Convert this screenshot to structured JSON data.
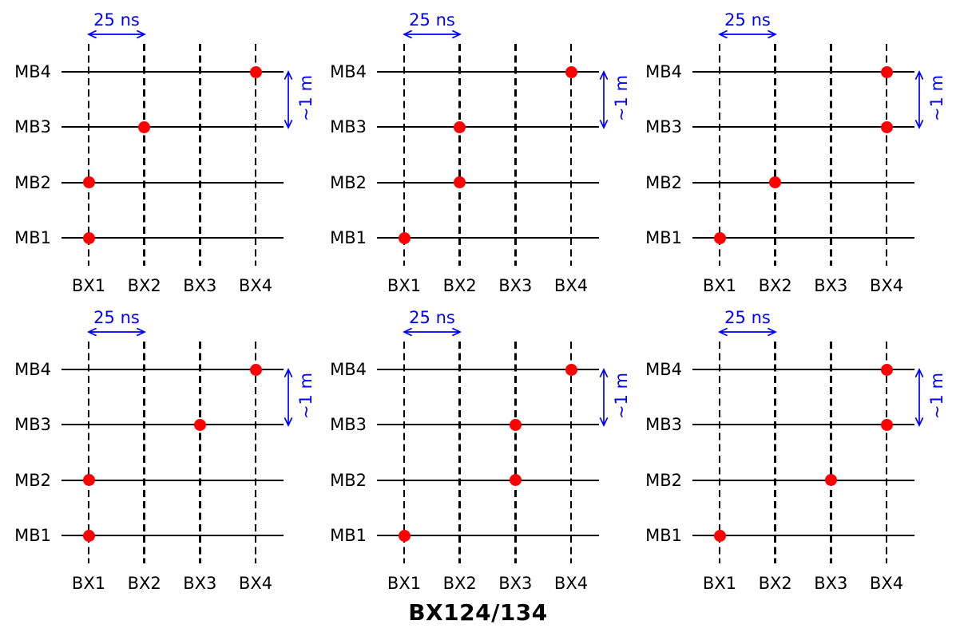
{
  "caption": "BX124/134",
  "colors": {
    "accent_blue": "#0000ff",
    "dot_red": "#ff0000",
    "line_black": "#000000"
  },
  "axis": {
    "mb_labels": [
      "MB4",
      "MB3",
      "MB2",
      "MB1"
    ],
    "bx_labels": [
      "BX1",
      "BX2",
      "BX3",
      "BX4"
    ]
  },
  "annotations": {
    "time_scale": "25 ns",
    "distance_scale": "~1 m"
  },
  "chart_data": {
    "type": "scatter",
    "title": "BX124/134",
    "x_categories": [
      "BX1",
      "BX2",
      "BX3",
      "BX4"
    ],
    "y_categories": [
      "MB1",
      "MB2",
      "MB3",
      "MB4"
    ],
    "legend": "red dot = hit at (BX, MB); dashed vertical lines = bunch crossings spaced 25 ns; horizontal lines = muon barrel stations spaced ~1 m",
    "panels": [
      {
        "row": 0,
        "col": 0,
        "hits": {
          "MB1": "BX1",
          "MB2": "BX1",
          "MB3": "BX2",
          "MB4": "BX4"
        }
      },
      {
        "row": 0,
        "col": 1,
        "hits": {
          "MB1": "BX1",
          "MB2": "BX2",
          "MB3": "BX2",
          "MB4": "BX4"
        }
      },
      {
        "row": 0,
        "col": 2,
        "hits": {
          "MB1": "BX1",
          "MB2": "BX2",
          "MB3": "BX4",
          "MB4": "BX4"
        }
      },
      {
        "row": 1,
        "col": 0,
        "hits": {
          "MB1": "BX1",
          "MB2": "BX1",
          "MB3": "BX3",
          "MB4": "BX4"
        }
      },
      {
        "row": 1,
        "col": 1,
        "hits": {
          "MB1": "BX1",
          "MB2": "BX3",
          "MB3": "BX3",
          "MB4": "BX4"
        }
      },
      {
        "row": 1,
        "col": 2,
        "hits": {
          "MB1": "BX1",
          "MB2": "BX3",
          "MB3": "BX4",
          "MB4": "BX4"
        }
      }
    ]
  }
}
